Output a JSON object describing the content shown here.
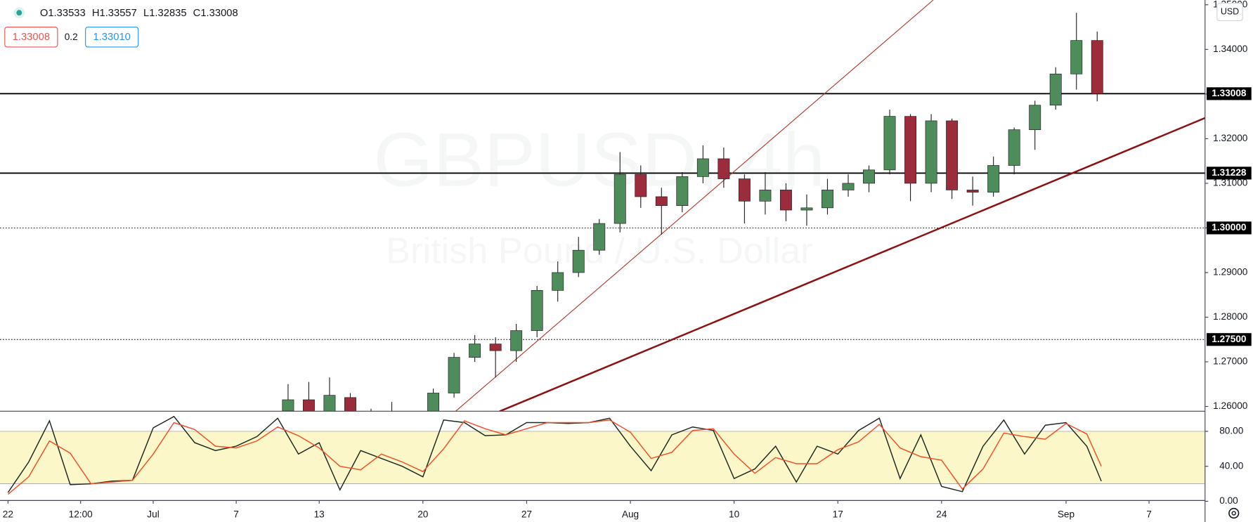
{
  "chart_data": {
    "type": "candlestick",
    "watermark": "GBPUSD, 4h",
    "watermark_subtitle": "British Pound / U.S. Dollar",
    "ohlc_legend": [
      "O1.33533",
      "H1.33557",
      "L1.32835",
      "C1.33008"
    ],
    "sell_price": "1.33008",
    "spread": "0.2",
    "buy_price": "1.33010",
    "currency": "USD",
    "up_color": "#4e8c5c",
    "down_color": "#9b2c3b",
    "xlim": [
      -0.385,
      57.7
    ],
    "xticks": [
      {
        "value": 0,
        "label": "22"
      },
      {
        "value": 3.5,
        "label": "12:00"
      },
      {
        "value": 7,
        "label": "Jul"
      },
      {
        "value": 11,
        "label": "7"
      },
      {
        "value": 15,
        "label": "13"
      },
      {
        "value": 20,
        "label": "20"
      },
      {
        "value": 25,
        "label": "27"
      },
      {
        "value": 30,
        "label": "Aug"
      },
      {
        "value": 35,
        "label": "10"
      },
      {
        "value": 40,
        "label": "17"
      },
      {
        "value": 45,
        "label": "24"
      },
      {
        "value": 51,
        "label": "Sep"
      },
      {
        "value": 55,
        "label": "7"
      }
    ],
    "ylim": [
      1.25893,
      1.35107
    ],
    "yticks": [
      {
        "value": 1.26,
        "label": "1.26000"
      },
      {
        "value": 1.27,
        "label": "1.27000"
      },
      {
        "value": 1.28,
        "label": "1.28000"
      },
      {
        "value": 1.29,
        "label": "1.29000"
      },
      {
        "value": 1.3,
        "label": "1.30000"
      },
      {
        "value": 1.31,
        "label": "1.31000"
      },
      {
        "value": 1.32,
        "label": "1.32000"
      },
      {
        "value": 1.33,
        "label": "1.33000"
      },
      {
        "value": 1.34,
        "label": "1.34000"
      },
      {
        "value": 1.35,
        "label": "1.35000"
      }
    ],
    "candles": {
      "x": [
        13,
        14,
        15,
        16,
        17,
        18,
        19,
        20,
        21,
        22,
        23,
        24,
        25,
        26,
        27,
        28,
        29,
        30,
        31,
        32,
        33,
        34,
        35,
        36,
        37,
        38,
        39,
        40,
        41,
        42,
        43,
        44,
        45,
        46,
        47,
        48,
        49,
        50,
        51,
        52
      ],
      "open": [
        1.259,
        1.2615,
        1.257,
        1.262,
        1.258,
        1.256,
        1.2575,
        1.2565,
        1.263,
        1.271,
        1.274,
        1.2725,
        1.277,
        1.286,
        1.29,
        1.295,
        1.301,
        1.312,
        1.307,
        1.305,
        1.3115,
        1.3155,
        1.311,
        1.306,
        1.3085,
        1.304,
        1.3045,
        1.3085,
        1.31,
        1.313,
        1.325,
        1.31,
        1.324,
        1.3085,
        1.308,
        1.314,
        1.322,
        1.3275,
        1.3345,
        1.342
      ],
      "high": [
        1.265,
        1.2655,
        1.2665,
        1.263,
        1.2595,
        1.261,
        1.259,
        1.264,
        1.272,
        1.276,
        1.2755,
        1.2785,
        1.287,
        1.2925,
        1.298,
        1.302,
        1.317,
        1.314,
        1.309,
        1.3125,
        1.3185,
        1.318,
        1.312,
        1.3125,
        1.31,
        1.3075,
        1.311,
        1.312,
        1.314,
        1.3265,
        1.3255,
        1.3255,
        1.3245,
        1.3115,
        1.316,
        1.3225,
        1.3285,
        1.336,
        1.3482,
        1.344
      ],
      "low": [
        1.258,
        1.257,
        1.256,
        1.256,
        1.2555,
        1.254,
        1.2555,
        1.254,
        1.262,
        1.27,
        1.2665,
        1.27,
        1.2755,
        1.2835,
        1.289,
        1.294,
        1.299,
        1.3045,
        1.2985,
        1.3035,
        1.31,
        1.309,
        1.301,
        1.303,
        1.3015,
        1.3005,
        1.303,
        1.307,
        1.308,
        1.312,
        1.306,
        1.308,
        1.3065,
        1.305,
        1.307,
        1.312,
        1.3175,
        1.3265,
        1.331,
        1.32835
      ],
      "close": [
        1.2615,
        1.258,
        1.2625,
        1.258,
        1.256,
        1.2575,
        1.2565,
        1.263,
        1.271,
        1.274,
        1.2725,
        1.277,
        1.286,
        1.29,
        1.295,
        1.301,
        1.312,
        1.307,
        1.305,
        1.3115,
        1.3155,
        1.311,
        1.306,
        1.3085,
        1.304,
        1.3045,
        1.3085,
        1.31,
        1.313,
        1.325,
        1.31,
        1.324,
        1.3085,
        1.308,
        1.314,
        1.322,
        1.3275,
        1.3345,
        1.342,
        1.33008
      ]
    },
    "levels": [
      {
        "value": 1.33008,
        "label": "1.33008",
        "style": "solid"
      },
      {
        "value": 1.31228,
        "label": "1.31228",
        "style": "solid"
      },
      {
        "value": 1.3,
        "label": "1.30000",
        "style": "dotted"
      },
      {
        "value": 1.275,
        "label": "1.27500",
        "style": "dotted"
      }
    ],
    "trendlines": [
      {
        "points": [
          [
            21.57,
            1.25889
          ],
          [
            44.6,
            1.35107
          ]
        ],
        "color": "#b03a2e",
        "width": 1
      },
      {
        "points": [
          [
            23.69,
            1.25889
          ],
          [
            57.7,
            1.32464
          ]
        ],
        "color": "#8e1010",
        "width": 2.2
      }
    ],
    "indicator": {
      "type": "line",
      "band": [
        20,
        80
      ],
      "band_color": "#fbf7c8",
      "ylim": [
        0,
        103
      ],
      "yticks": [
        {
          "value": 0,
          "label": "0.00"
        },
        {
          "value": 40,
          "label": "40.00"
        },
        {
          "value": 80,
          "label": "80.00"
        }
      ],
      "x": [
        0,
        1,
        2,
        3,
        4,
        5,
        6,
        7,
        8,
        9,
        10,
        11,
        12,
        13,
        14,
        15,
        16,
        17,
        18,
        19,
        20,
        21,
        22,
        23,
        24,
        25,
        26,
        27,
        28,
        29,
        30,
        31,
        32,
        33,
        34,
        35,
        36,
        37,
        38,
        39,
        40,
        41,
        42,
        43,
        44,
        45,
        46,
        47,
        48,
        49,
        50,
        51,
        52,
        52.7
      ],
      "series": [
        {
          "color": "#1f2a1f",
          "values": [
            10,
            45,
            92,
            19,
            20,
            23,
            24,
            84,
            97,
            67,
            58,
            63,
            74,
            95,
            54,
            67,
            13,
            58,
            49,
            40,
            28,
            93,
            90,
            75,
            76,
            90,
            90,
            89,
            90,
            95,
            63,
            35,
            76,
            85,
            81,
            26,
            37,
            63,
            22,
            63,
            54,
            81,
            95,
            26,
            76,
            17,
            11,
            63,
            93,
            54,
            87,
            90,
            63,
            23
          ]
        },
        {
          "color": "#f0502a",
          "values": [
            8,
            28,
            69,
            55,
            20,
            22,
            24,
            54,
            90,
            82,
            63,
            61,
            69,
            85,
            75,
            61,
            40,
            36,
            54,
            45,
            34,
            60,
            92,
            83,
            76,
            83,
            90,
            90,
            90,
            93,
            79,
            49,
            56,
            81,
            83,
            54,
            32,
            50,
            43,
            43,
            59,
            68,
            88,
            61,
            51,
            47,
            14,
            37,
            78,
            74,
            71,
            89,
            77,
            40
          ]
        }
      ]
    }
  }
}
